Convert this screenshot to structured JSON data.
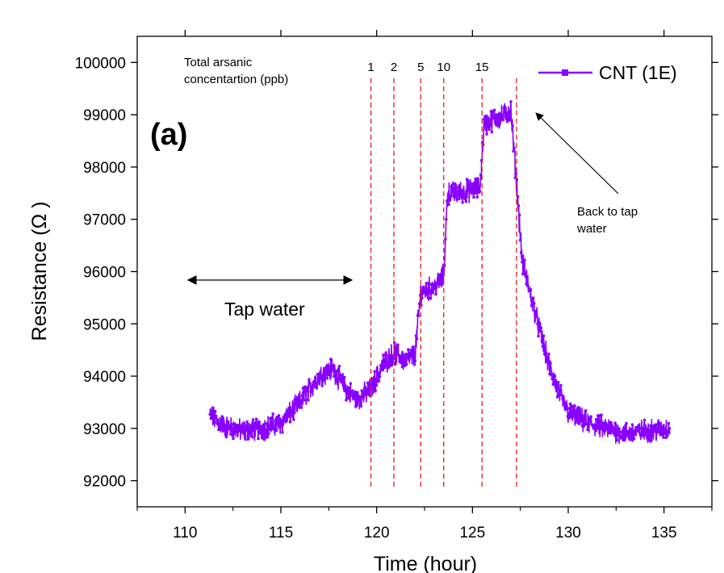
{
  "chart_data": {
    "type": "line",
    "title": "",
    "panel_label": "(a)",
    "xlabel": "Time (hour)",
    "ylabel": "Resistance (Ω )",
    "xlim": [
      107.5,
      137.5
    ],
    "ylim": [
      91500,
      100500
    ],
    "xticks": [
      110,
      115,
      120,
      125,
      130,
      135
    ],
    "yticks": [
      92000,
      93000,
      94000,
      95000,
      96000,
      97000,
      98000,
      99000,
      100000
    ],
    "grid": false,
    "legend": {
      "placement": "top-right",
      "entries": [
        "CNT (1E)"
      ]
    },
    "series": [
      {
        "name": "CNT (1E)",
        "color": "#8800ff",
        "x": [
          111.3,
          112.0,
          113.0,
          114.0,
          115.0,
          116.0,
          117.0,
          117.7,
          118.5,
          119.0,
          119.7,
          120.3,
          120.9,
          121.5,
          122.0,
          122.3,
          122.6,
          123.0,
          123.5,
          123.7,
          124.2,
          124.8,
          125.4,
          125.6,
          126.0,
          126.5,
          127.0,
          127.3,
          127.6,
          128.0,
          128.5,
          129.0,
          129.5,
          130.0,
          131.0,
          132.0,
          133.0,
          134.0,
          135.3
        ],
        "y": [
          93250,
          93050,
          92950,
          93000,
          93100,
          93500,
          94000,
          94150,
          93700,
          93550,
          93750,
          94200,
          94450,
          94300,
          94400,
          95600,
          95650,
          95700,
          95900,
          97500,
          97500,
          97550,
          97600,
          98800,
          98900,
          98950,
          99100,
          97700,
          96200,
          95600,
          94900,
          94200,
          93700,
          93300,
          93100,
          93000,
          92900,
          92950,
          93000
        ],
        "noise_amplitude": 170
      }
    ],
    "markers": [
      {
        "label": "1",
        "x": 119.7
      },
      {
        "label": "2",
        "x": 120.9
      },
      {
        "label": "5",
        "x": 122.3
      },
      {
        "label": "10",
        "x": 123.5
      },
      {
        "label": "15",
        "x": 125.5
      },
      {
        "label": "",
        "x": 127.3
      }
    ],
    "annotations": {
      "concentration_line1": "Total arsanic",
      "concentration_line2": "concentartion (ppb)",
      "back_line1": "Back to tap",
      "back_line2": "water",
      "tap_water": "Tap water"
    }
  }
}
